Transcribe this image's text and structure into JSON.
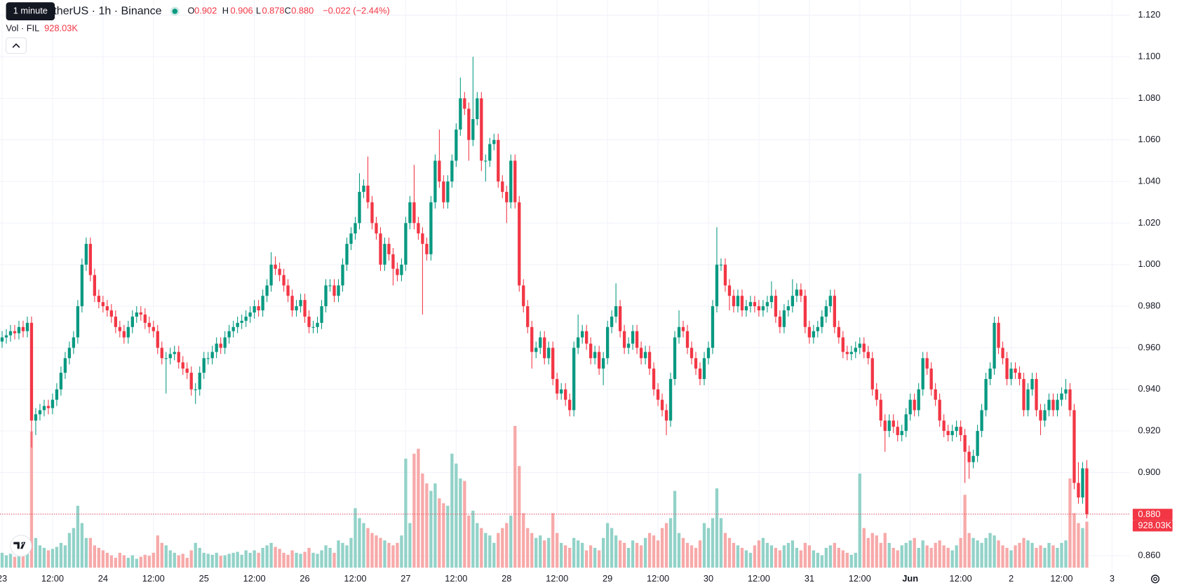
{
  "header": {
    "tooltip": "1 minute",
    "symbol": "etherUS · 1h · Binance",
    "ohlc": [
      {
        "key": "O",
        "value": "0.902"
      },
      {
        "key": "H",
        "value": "0.906"
      },
      {
        "key": "L",
        "value": "0.878"
      },
      {
        "key": "C",
        "value": "0.880"
      }
    ],
    "change": "−0.022 (−2.44%)",
    "volume_title": "Vol · FIL",
    "volume_value": "928.03K"
  },
  "chart_data": {
    "type": "candlestick",
    "open": [
      0.963,
      0.965,
      0.966,
      0.968,
      0.967,
      0.97,
      0.968,
      0.972,
      0.925,
      0.928,
      0.93,
      0.932,
      0.931,
      0.935,
      0.94,
      0.948,
      0.955,
      0.96,
      0.965,
      0.98,
      1.0,
      1.01,
      0.995,
      0.985,
      0.982,
      0.98,
      0.978,
      0.975,
      0.97,
      0.968,
      0.965,
      0.97,
      0.975,
      0.977,
      0.976,
      0.972,
      0.97,
      0.968,
      0.96,
      0.955,
      0.955,
      0.957,
      0.958,
      0.953,
      0.95,
      0.948,
      0.94,
      0.94,
      0.948,
      0.955,
      0.955,
      0.958,
      0.962,
      0.96,
      0.965,
      0.968,
      0.97,
      0.972,
      0.973,
      0.975,
      0.977,
      0.98,
      0.978,
      0.985,
      0.99,
      1.0,
      0.998,
      0.995,
      0.99,
      0.985,
      0.978,
      0.98,
      0.983,
      0.975,
      0.97,
      0.97,
      0.972,
      0.98,
      0.99,
      0.99,
      0.985,
      0.99,
      1.0,
      1.01,
      1.015,
      1.02,
      1.035,
      1.038,
      1.03,
      1.02,
      1.015,
      1.0,
      1.01,
      1.005,
      0.998,
      0.995,
      1.0,
      1.02,
      1.03,
      1.02,
      1.015,
      1.01,
      1.005,
      1.03,
      1.05,
      1.04,
      1.03,
      1.04,
      1.05,
      1.065,
      1.08,
      1.075,
      1.06,
      1.07,
      1.08,
      1.05,
      1.05,
      1.058,
      1.06,
      1.04,
      1.035,
      1.03,
      1.05,
      1.03,
      0.99,
      0.98,
      0.97,
      0.958,
      0.96,
      0.965,
      0.955,
      0.96,
      0.945,
      0.938,
      0.94,
      0.935,
      0.93,
      0.96,
      0.965,
      0.968,
      0.962,
      0.955,
      0.958,
      0.95,
      0.955,
      0.97,
      0.975,
      0.98,
      0.968,
      0.96,
      0.962,
      0.968,
      0.96,
      0.955,
      0.958,
      0.95,
      0.94,
      0.935,
      0.93,
      0.925,
      0.945,
      0.965,
      0.97,
      0.968,
      0.96,
      0.955,
      0.95,
      0.945,
      0.955,
      0.96,
      0.98,
      1.0,
      1.0,
      0.99,
      0.985,
      0.98,
      0.985,
      0.978,
      0.98,
      0.982,
      0.98,
      0.978,
      0.98,
      0.982,
      0.985,
      0.975,
      0.97,
      0.978,
      0.98,
      0.985,
      0.988,
      0.985,
      0.97,
      0.965,
      0.968,
      0.97,
      0.975,
      0.98,
      0.985,
      0.97,
      0.965,
      0.958,
      0.957,
      0.958,
      0.96,
      0.962,
      0.958,
      0.955,
      0.94,
      0.935,
      0.925,
      0.92,
      0.925,
      0.922,
      0.918,
      0.92,
      0.928,
      0.935,
      0.93,
      0.94,
      0.955,
      0.95,
      0.94,
      0.935,
      0.925,
      0.92,
      0.918,
      0.92,
      0.922,
      0.918,
      0.91,
      0.905,
      0.908,
      0.92,
      0.93,
      0.945,
      0.95,
      0.972,
      0.96,
      0.955,
      0.945,
      0.95,
      0.948,
      0.945,
      0.93,
      0.94,
      0.945,
      0.93,
      0.925,
      0.93,
      0.935,
      0.93,
      0.935,
      0.938,
      0.94,
      0.93,
      0.895,
      0.888,
      0.902
    ],
    "high": [
      0.968,
      0.969,
      0.971,
      0.971,
      0.973,
      0.973,
      0.975,
      0.975,
      0.931,
      0.933,
      0.935,
      0.935,
      0.938,
      0.943,
      0.951,
      0.958,
      0.963,
      0.968,
      0.983,
      1.003,
      1.013,
      1.013,
      0.998,
      0.988,
      0.985,
      0.983,
      0.981,
      0.978,
      0.973,
      0.971,
      0.973,
      0.978,
      0.98,
      0.98,
      0.979,
      0.975,
      0.973,
      0.971,
      0.963,
      0.958,
      0.96,
      0.961,
      0.961,
      0.956,
      0.953,
      0.951,
      0.943,
      0.951,
      0.958,
      0.958,
      0.961,
      0.965,
      0.965,
      0.968,
      0.971,
      0.973,
      0.975,
      0.976,
      0.978,
      0.98,
      0.983,
      0.983,
      0.988,
      0.993,
      1.006,
      1.004,
      1.001,
      0.998,
      0.993,
      0.988,
      0.983,
      0.986,
      0.986,
      0.978,
      0.973,
      0.975,
      0.983,
      0.993,
      0.993,
      0.993,
      0.993,
      1.003,
      1.013,
      1.018,
      1.023,
      1.044,
      1.041,
      1.052,
      1.033,
      1.023,
      1.018,
      1.013,
      1.013,
      1.008,
      1.001,
      1.003,
      1.023,
      1.033,
      1.048,
      1.023,
      1.018,
      1.013,
      1.033,
      1.053,
      1.065,
      1.043,
      1.043,
      1.053,
      1.068,
      1.09,
      1.083,
      1.078,
      1.1,
      1.083,
      1.083,
      1.053,
      1.061,
      1.063,
      1.063,
      1.043,
      1.038,
      1.053,
      1.053,
      1.033,
      0.993,
      0.983,
      0.973,
      0.963,
      0.968,
      0.968,
      0.963,
      0.963,
      0.948,
      0.943,
      0.943,
      0.938,
      0.963,
      0.976,
      0.971,
      0.971,
      0.965,
      0.961,
      0.961,
      0.958,
      0.973,
      0.978,
      0.991,
      0.983,
      0.971,
      0.965,
      0.971,
      0.971,
      0.963,
      0.961,
      0.961,
      0.953,
      0.943,
      0.938,
      0.933,
      0.948,
      0.968,
      0.978,
      0.973,
      0.971,
      0.963,
      0.958,
      0.953,
      0.958,
      0.963,
      0.983,
      1.018,
      1.003,
      1.003,
      0.993,
      0.988,
      0.988,
      0.988,
      0.983,
      0.985,
      0.985,
      0.983,
      0.983,
      0.985,
      0.992,
      0.988,
      0.978,
      0.981,
      0.983,
      0.993,
      0.991,
      0.991,
      0.988,
      0.973,
      0.971,
      0.973,
      0.978,
      0.983,
      0.988,
      0.988,
      0.973,
      0.968,
      0.961,
      0.961,
      0.963,
      0.965,
      0.965,
      0.961,
      0.958,
      0.943,
      0.938,
      0.928,
      0.928,
      0.928,
      0.925,
      0.923,
      0.931,
      0.938,
      0.938,
      0.943,
      0.958,
      0.958,
      0.953,
      0.943,
      0.938,
      0.928,
      0.923,
      0.923,
      0.925,
      0.925,
      0.921,
      0.913,
      0.911,
      0.923,
      0.933,
      0.948,
      0.953,
      0.975,
      0.975,
      0.963,
      0.958,
      0.953,
      0.953,
      0.951,
      0.948,
      0.943,
      0.948,
      0.948,
      0.933,
      0.933,
      0.938,
      0.938,
      0.938,
      0.941,
      0.945,
      0.943,
      0.933,
      0.905,
      0.905,
      0.906
    ],
    "low": [
      0.96,
      0.962,
      0.963,
      0.964,
      0.964,
      0.965,
      0.965,
      0.912,
      0.918,
      0.925,
      0.927,
      0.928,
      0.928,
      0.932,
      0.937,
      0.945,
      0.952,
      0.957,
      0.962,
      0.977,
      0.997,
      0.992,
      0.982,
      0.979,
      0.977,
      0.975,
      0.972,
      0.967,
      0.965,
      0.962,
      0.962,
      0.967,
      0.972,
      0.973,
      0.969,
      0.967,
      0.965,
      0.957,
      0.952,
      0.938,
      0.952,
      0.954,
      0.95,
      0.947,
      0.945,
      0.937,
      0.933,
      0.937,
      0.945,
      0.952,
      0.952,
      0.955,
      0.957,
      0.957,
      0.962,
      0.965,
      0.967,
      0.969,
      0.97,
      0.972,
      0.974,
      0.975,
      0.975,
      0.982,
      0.987,
      0.995,
      0.992,
      0.987,
      0.982,
      0.975,
      0.975,
      0.977,
      0.972,
      0.967,
      0.967,
      0.967,
      0.969,
      0.977,
      0.987,
      0.982,
      0.982,
      0.987,
      0.997,
      1.007,
      1.012,
      1.017,
      1.032,
      1.027,
      1.017,
      1.012,
      0.997,
      0.997,
      1.002,
      0.99,
      0.992,
      0.992,
      0.997,
      1.017,
      1.017,
      1.012,
      0.976,
      1.002,
      1.002,
      1.027,
      1.037,
      1.027,
      1.027,
      1.037,
      1.047,
      1.062,
      1.072,
      1.05,
      1.057,
      1.067,
      1.045,
      1.04,
      1.047,
      1.055,
      1.037,
      1.032,
      1.02,
      1.027,
      1.027,
      0.987,
      0.977,
      0.967,
      0.95,
      0.955,
      0.957,
      0.952,
      0.952,
      0.942,
      0.935,
      0.935,
      0.932,
      0.927,
      0.927,
      0.957,
      0.962,
      0.959,
      0.952,
      0.952,
      0.947,
      0.942,
      0.952,
      0.967,
      0.972,
      0.965,
      0.957,
      0.957,
      0.959,
      0.957,
      0.952,
      0.952,
      0.947,
      0.937,
      0.932,
      0.927,
      0.918,
      0.922,
      0.942,
      0.962,
      0.965,
      0.957,
      0.952,
      0.947,
      0.942,
      0.942,
      0.952,
      0.957,
      0.977,
      0.997,
      0.987,
      0.978,
      0.977,
      0.977,
      0.975,
      0.975,
      0.977,
      0.977,
      0.975,
      0.975,
      0.977,
      0.979,
      0.972,
      0.967,
      0.967,
      0.975,
      0.977,
      0.982,
      0.982,
      0.967,
      0.962,
      0.962,
      0.965,
      0.967,
      0.972,
      0.977,
      0.967,
      0.962,
      0.955,
      0.954,
      0.954,
      0.955,
      0.957,
      0.955,
      0.952,
      0.937,
      0.932,
      0.922,
      0.91,
      0.917,
      0.919,
      0.915,
      0.915,
      0.917,
      0.925,
      0.927,
      0.927,
      0.937,
      0.947,
      0.937,
      0.932,
      0.922,
      0.917,
      0.915,
      0.915,
      0.917,
      0.915,
      0.895,
      0.897,
      0.902,
      0.905,
      0.917,
      0.927,
      0.942,
      0.947,
      0.957,
      0.952,
      0.942,
      0.942,
      0.945,
      0.942,
      0.927,
      0.927,
      0.937,
      0.927,
      0.918,
      0.922,
      0.927,
      0.927,
      0.927,
      0.932,
      0.935,
      0.927,
      0.892,
      0.885,
      0.885,
      0.878
    ],
    "close": [
      0.965,
      0.966,
      0.968,
      0.967,
      0.97,
      0.968,
      0.972,
      0.925,
      0.928,
      0.93,
      0.932,
      0.931,
      0.935,
      0.94,
      0.948,
      0.955,
      0.96,
      0.965,
      0.98,
      1.0,
      1.01,
      0.995,
      0.985,
      0.982,
      0.98,
      0.978,
      0.975,
      0.97,
      0.968,
      0.965,
      0.97,
      0.975,
      0.977,
      0.976,
      0.972,
      0.97,
      0.968,
      0.96,
      0.955,
      0.955,
      0.957,
      0.958,
      0.953,
      0.95,
      0.948,
      0.94,
      0.94,
      0.948,
      0.955,
      0.955,
      0.958,
      0.962,
      0.96,
      0.965,
      0.968,
      0.97,
      0.972,
      0.973,
      0.975,
      0.977,
      0.98,
      0.978,
      0.985,
      0.99,
      1.0,
      0.998,
      0.995,
      0.99,
      0.985,
      0.978,
      0.98,
      0.983,
      0.975,
      0.97,
      0.97,
      0.972,
      0.98,
      0.99,
      0.99,
      0.985,
      0.99,
      1.0,
      1.01,
      1.015,
      1.02,
      1.035,
      1.038,
      1.03,
      1.02,
      1.015,
      1.0,
      1.01,
      1.005,
      0.998,
      0.995,
      1.0,
      1.02,
      1.03,
      1.02,
      1.015,
      1.01,
      1.005,
      1.03,
      1.05,
      1.04,
      1.03,
      1.04,
      1.05,
      1.065,
      1.08,
      1.075,
      1.06,
      1.07,
      1.08,
      1.05,
      1.05,
      1.058,
      1.06,
      1.04,
      1.035,
      1.03,
      1.05,
      1.03,
      0.99,
      0.98,
      0.97,
      0.958,
      0.96,
      0.965,
      0.955,
      0.96,
      0.945,
      0.938,
      0.94,
      0.935,
      0.93,
      0.96,
      0.965,
      0.968,
      0.962,
      0.955,
      0.958,
      0.95,
      0.955,
      0.97,
      0.975,
      0.98,
      0.968,
      0.96,
      0.962,
      0.968,
      0.96,
      0.955,
      0.958,
      0.95,
      0.94,
      0.935,
      0.93,
      0.925,
      0.945,
      0.965,
      0.97,
      0.968,
      0.96,
      0.955,
      0.95,
      0.945,
      0.955,
      0.96,
      0.98,
      1.0,
      1.0,
      0.99,
      0.985,
      0.98,
      0.985,
      0.978,
      0.98,
      0.982,
      0.98,
      0.978,
      0.98,
      0.982,
      0.985,
      0.975,
      0.97,
      0.978,
      0.98,
      0.985,
      0.988,
      0.985,
      0.97,
      0.965,
      0.968,
      0.97,
      0.975,
      0.98,
      0.985,
      0.97,
      0.965,
      0.958,
      0.957,
      0.958,
      0.96,
      0.962,
      0.958,
      0.955,
      0.94,
      0.935,
      0.925,
      0.92,
      0.925,
      0.922,
      0.918,
      0.92,
      0.928,
      0.935,
      0.93,
      0.94,
      0.955,
      0.95,
      0.94,
      0.935,
      0.925,
      0.92,
      0.918,
      0.92,
      0.922,
      0.918,
      0.91,
      0.905,
      0.908,
      0.92,
      0.93,
      0.945,
      0.95,
      0.972,
      0.96,
      0.955,
      0.945,
      0.95,
      0.948,
      0.945,
      0.93,
      0.94,
      0.945,
      0.93,
      0.925,
      0.93,
      0.935,
      0.93,
      0.935,
      0.938,
      0.94,
      0.93,
      0.895,
      0.888,
      0.902,
      0.88
    ],
    "volume": [
      300,
      250,
      280,
      220,
      260,
      300,
      350,
      2750,
      600,
      450,
      400,
      350,
      380,
      420,
      500,
      450,
      700,
      800,
      1250,
      900,
      600,
      600,
      450,
      400,
      350,
      300,
      250,
      200,
      300,
      250,
      200,
      250,
      180,
      220,
      260,
      240,
      300,
      650,
      500,
      450,
      350,
      300,
      250,
      280,
      200,
      350,
      500,
      400,
      300,
      280,
      260,
      300,
      240,
      250,
      280,
      300,
      320,
      260,
      350,
      300,
      350,
      300,
      400,
      450,
      500,
      420,
      380,
      300,
      260,
      350,
      300,
      280,
      320,
      400,
      300,
      280,
      350,
      450,
      400,
      300,
      550,
      500,
      450,
      600,
      1200,
      1000,
      900,
      800,
      700,
      650,
      600,
      550,
      500,
      450,
      500,
      650,
      2200,
      900,
      2300,
      2400,
      1900,
      1700,
      1550,
      1700,
      1400,
      1300,
      1250,
      2300,
      2100,
      1800,
      1750,
      1050,
      1150,
      900,
      800,
      700,
      650,
      500,
      700,
      800,
      900,
      1050,
      2860,
      2050,
      1100,
      800,
      700,
      600,
      650,
      550,
      600,
      1100,
      700,
      500,
      450,
      400,
      600,
      550,
      500,
      350,
      450,
      400,
      350,
      600,
      900,
      800,
      650,
      550,
      500,
      400,
      550,
      500,
      450,
      600,
      700,
      650,
      550,
      800,
      900,
      1000,
      1550,
      700,
      600,
      500,
      450,
      400,
      550,
      900,
      800,
      1000,
      1600,
      1000,
      700,
      600,
      500,
      450,
      400,
      350,
      300,
      450,
      550,
      600,
      500,
      450,
      400,
      350,
      450,
      500,
      550,
      400,
      350,
      500,
      450,
      350,
      300,
      250,
      400,
      450,
      500,
      400,
      350,
      300,
      260,
      300,
      1900,
      800,
      600,
      700,
      650,
      500,
      700,
      500,
      400,
      350,
      450,
      500,
      550,
      600,
      400,
      550,
      450,
      400,
      500,
      550,
      450,
      400,
      350,
      450,
      600,
      1470,
      700,
      600,
      550,
      500,
      600,
      700,
      650,
      550,
      450,
      400,
      350,
      450,
      500,
      600,
      550,
      500,
      400,
      450,
      400,
      500,
      450,
      400,
      500,
      550,
      1800,
      1100,
      900,
      800,
      928.03
    ],
    "xlim": [
      -0.5,
      268.2
    ],
    "ylim": [
      0.8517,
      1.1273
    ],
    "yticks": [
      {
        "value": 0.86,
        "label": "0.860"
      },
      {
        "value": 0.88,
        "label": "0.880"
      },
      {
        "value": 0.9,
        "label": "0.900"
      },
      {
        "value": 0.92,
        "label": "0.920"
      },
      {
        "value": 0.94,
        "label": "0.940"
      },
      {
        "value": 0.96,
        "label": "0.960"
      },
      {
        "value": 0.98,
        "label": "0.980"
      },
      {
        "value": 1.0,
        "label": "1.000"
      },
      {
        "value": 1.02,
        "label": "1.020"
      },
      {
        "value": 1.04,
        "label": "1.040"
      },
      {
        "value": 1.06,
        "label": "1.060"
      },
      {
        "value": 1.08,
        "label": "1.080"
      },
      {
        "value": 1.1,
        "label": "1.100"
      },
      {
        "value": 1.12,
        "label": "1.120"
      }
    ],
    "xticks": [
      {
        "value": 0,
        "label": "23"
      },
      {
        "value": 12,
        "label": "12:00"
      },
      {
        "value": 24,
        "label": "24"
      },
      {
        "value": 36,
        "label": "12:00"
      },
      {
        "value": 48,
        "label": "25"
      },
      {
        "value": 60,
        "label": "12:00"
      },
      {
        "value": 72,
        "label": "26"
      },
      {
        "value": 84,
        "label": "12:00"
      },
      {
        "value": 96,
        "label": "27"
      },
      {
        "value": 108,
        "label": "12:00"
      },
      {
        "value": 120,
        "label": "28"
      },
      {
        "value": 132,
        "label": "12:00"
      },
      {
        "value": 144,
        "label": "29"
      },
      {
        "value": 156,
        "label": "12:00"
      },
      {
        "value": 168,
        "label": "30"
      },
      {
        "value": 180,
        "label": "12:00"
      },
      {
        "value": 192,
        "label": "31"
      },
      {
        "value": 204,
        "label": "12:00"
      },
      {
        "value": 216,
        "label": "Jun"
      },
      {
        "value": 228,
        "label": "12:00"
      },
      {
        "value": 240,
        "label": "2"
      },
      {
        "value": 252,
        "label": "12:00"
      },
      {
        "value": 264,
        "label": "3"
      }
    ],
    "up_color": "#089981",
    "down_color": "#f23645",
    "up_volume_color": "#92d2c8",
    "down_volume_color": "#f7a9a9",
    "grid": true,
    "last_price_label": "0.880",
    "last_volume_label": "928.03K"
  }
}
